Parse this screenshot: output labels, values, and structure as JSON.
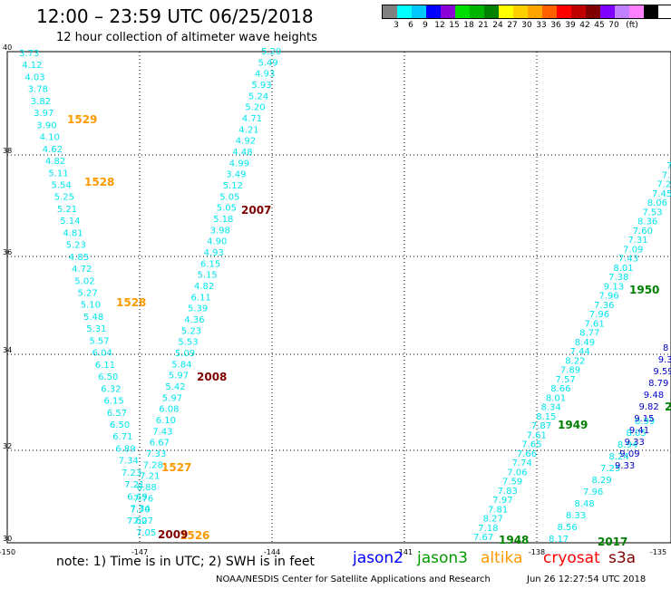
{
  "header": {
    "title": "12:00 – 23:59 UTC 06/25/2018",
    "subtitle": "12 hour collection of altimeter wave heights"
  },
  "legend": {
    "colors": [
      "#808080",
      "#00ffff",
      "#00c8ff",
      "#0000ff",
      "#8a00d6",
      "#00dd00",
      "#00b400",
      "#008000",
      "#ffff00",
      "#ffd000",
      "#ffa500",
      "#ff6000",
      "#ff0000",
      "#c00000",
      "#800000",
      "#8000ff",
      "#c080ff",
      "#ff80ff",
      "#000000"
    ],
    "labels": [
      "3",
      "6",
      "9",
      "12",
      "15",
      "18",
      "21",
      "24",
      "27",
      "30",
      "33",
      "36",
      "39",
      "42",
      "45",
      "70",
      "(ft)"
    ]
  },
  "axes": {
    "lat_labels": [
      "40",
      "38",
      "36",
      "34",
      "32",
      "30"
    ],
    "lon_labels": [
      "-150",
      "-147",
      "-144",
      "-141",
      "-138",
      "-135"
    ]
  },
  "tracks": [
    {
      "name": "track-a",
      "color": "#00e5ee",
      "values": [
        "3.73",
        "4.12",
        "4.03",
        "3.78",
        "3.82",
        "3.97",
        "3.90",
        "4.10",
        "4.62",
        "4.82",
        "5.11",
        "5.54",
        "5.25",
        "5.21",
        "5.14",
        "4.81",
        "5.23",
        "4.85",
        "4.72",
        "5.02",
        "5.27",
        "5.10",
        "5.48",
        "5.31",
        "5.57",
        "6.04",
        "6.11",
        "6.50",
        "6.32",
        "6.15",
        "6.57",
        "6.50",
        "6.71",
        "6.89",
        "7.34",
        "7.23",
        "7.21",
        "6.69",
        "7.34",
        "7.27",
        "7.05"
      ]
    },
    {
      "name": "track-b",
      "color": "#00e5ee",
      "values": [
        "5.20",
        "5.49",
        "4.93",
        "5.93",
        "5.24",
        "5.20",
        "4.71",
        "4.21",
        "4.92",
        "4.48",
        "4.99",
        "3.49",
        "5.12",
        "5.05",
        "5.05",
        "5.18",
        "3.98",
        "4.90",
        "4.93",
        "6.15",
        "5.15",
        "4.82",
        "6.11",
        "5.39",
        "4.36",
        "5.23",
        "5.53",
        "5.09",
        "5.84",
        "5.97",
        "5.42",
        "5.97",
        "6.08",
        "6.10",
        "7.43",
        "6.67",
        "7.33",
        "7.28",
        "7.21",
        "6.88",
        "7.76",
        "7.70",
        "7.60"
      ]
    },
    {
      "name": "track-c",
      "color": "#00e5ee",
      "values": [
        "7.67",
        "7.18",
        "8.27",
        "7.81",
        "7.97",
        "7.83",
        "7.59",
        "7.06",
        "7.74",
        "7.66",
        "7.65",
        "7.61",
        "7.87",
        "8.15",
        "8.34",
        "8.01",
        "8.66",
        "7.57",
        "7.89",
        "8.22",
        "7.44",
        "8.49",
        "8.77",
        "7.61",
        "7.96",
        "7.36",
        "7.96",
        "9.13",
        "7.38",
        "8.01",
        "7.43",
        "7.09",
        "7.31",
        "7.60",
        "8.36",
        "7.53",
        "8.06",
        "7.45",
        "7.20",
        "7.9",
        "7"
      ]
    },
    {
      "name": "track-d",
      "color": "#00e5ee",
      "values": [
        "8.17",
        "8.56",
        "8.33",
        "8.48",
        "7.96",
        "8.29",
        "7.25",
        "8.24",
        "8.94",
        "8.05",
        "8.99"
      ]
    },
    {
      "name": "track-d-jason2",
      "color": "#0000cc",
      "values": [
        "9.33",
        "9.09",
        "9.33",
        "9.41",
        "9.15",
        "9.82",
        "9.48",
        "8.79",
        "9.59",
        "9.3",
        "8"
      ]
    }
  ],
  "time_labels": [
    {
      "text": "1529",
      "color": "#ff9900"
    },
    {
      "text": "1528",
      "color": "#ff9900"
    },
    {
      "text": "1528",
      "color": "#ff9900"
    },
    {
      "text": "1527",
      "color": "#ff9900"
    },
    {
      "text": "1526",
      "color": "#ff9900"
    },
    {
      "text": "2007",
      "color": "#800000"
    },
    {
      "text": "2008",
      "color": "#800000"
    },
    {
      "text": "2009",
      "color": "#800000"
    },
    {
      "text": "1950",
      "color": "#008000"
    },
    {
      "text": "1949",
      "color": "#008000"
    },
    {
      "text": "1948",
      "color": "#008000"
    },
    {
      "text": "2017",
      "color": "#008000"
    },
    {
      "text": "2",
      "color": "#008000"
    }
  ],
  "footer": {
    "note": "note:  1) Time is in UTC;  2) SWH is in feet",
    "satellites": [
      {
        "name": "jason2",
        "color": "#0000ff"
      },
      {
        "name": "jason3",
        "color": "#009900"
      },
      {
        "name": "altika",
        "color": "#ff9900"
      },
      {
        "name": "cryosat",
        "color": "#ff0000"
      },
      {
        "name": "s3a",
        "color": "#800000"
      }
    ],
    "credit": "NOAA/NESDIS Center for Satellite Applications and Research",
    "timestamp": "Jun 26 12:27:54 UTC 2018"
  }
}
